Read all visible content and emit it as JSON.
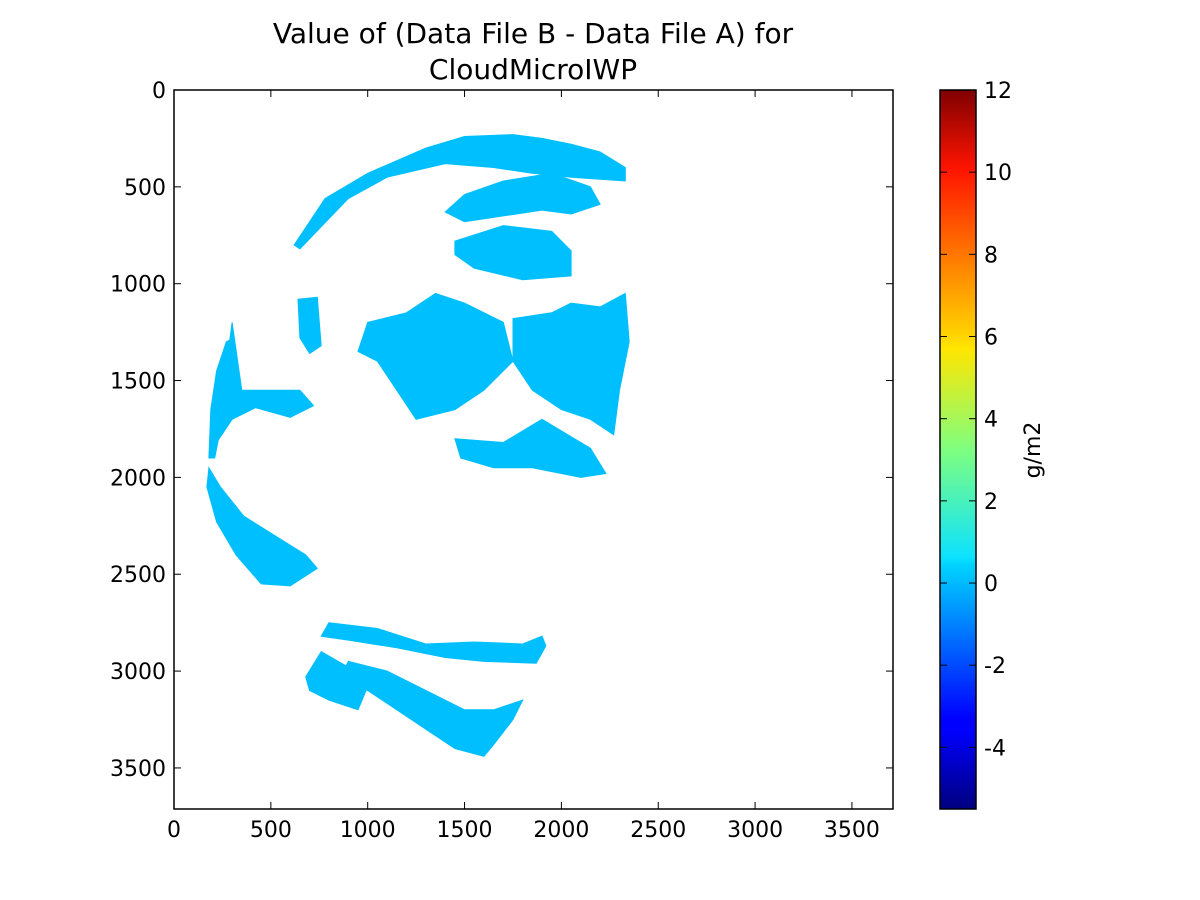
{
  "chart_data": {
    "type": "heatmap",
    "title_lines": [
      "Value of (Data File B - Data File A) for",
      "CloudMicroIWP"
    ],
    "xlabel": "",
    "ylabel": "",
    "xlim": [
      0,
      3712
    ],
    "ylim": [
      3712,
      0
    ],
    "x_ticks": [
      "0",
      "500",
      "1000",
      "1500",
      "2000",
      "2500",
      "3000",
      "3500"
    ],
    "x_tick_values": [
      0,
      500,
      1000,
      1500,
      2000,
      2500,
      3000,
      3500
    ],
    "y_ticks": [
      "0",
      "500",
      "1000",
      "1500",
      "2000",
      "2500",
      "3000",
      "3500"
    ],
    "y_tick_values": [
      0,
      500,
      1000,
      1500,
      2000,
      2500,
      3000,
      3500
    ],
    "fill_value": 0,
    "fill_color": "#00bfff",
    "colorbar": {
      "label": "g/m2",
      "colormap": "jet",
      "vmin": -5.5,
      "vmax": 12,
      "ticks": [
        "-4",
        "-2",
        "0",
        "2",
        "4",
        "6",
        "8",
        "10",
        "12"
      ],
      "tick_values": [
        -4,
        -2,
        0,
        2,
        4,
        6,
        8,
        10,
        12
      ]
    },
    "regions": [
      {
        "name": "north-arc",
        "points": [
          [
            620,
            800
          ],
          [
            780,
            560
          ],
          [
            1000,
            430
          ],
          [
            1300,
            300
          ],
          [
            1500,
            240
          ],
          [
            1750,
            230
          ],
          [
            1900,
            250
          ],
          [
            2050,
            280
          ],
          [
            2200,
            320
          ],
          [
            2330,
            400
          ],
          [
            2330,
            470
          ],
          [
            2050,
            450
          ],
          [
            1850,
            430
          ],
          [
            1650,
            400
          ],
          [
            1400,
            380
          ],
          [
            1100,
            450
          ],
          [
            900,
            560
          ],
          [
            650,
            820
          ]
        ]
      },
      {
        "name": "north-east-band",
        "points": [
          [
            1500,
            540
          ],
          [
            1700,
            470
          ],
          [
            1950,
            430
          ],
          [
            2150,
            500
          ],
          [
            2200,
            590
          ],
          [
            2050,
            640
          ],
          [
            1900,
            620
          ],
          [
            1700,
            650
          ],
          [
            1500,
            680
          ],
          [
            1400,
            630
          ]
        ]
      },
      {
        "name": "north-east-clusters",
        "points": [
          [
            1450,
            780
          ],
          [
            1700,
            700
          ],
          [
            1950,
            730
          ],
          [
            2050,
            830
          ],
          [
            2050,
            960
          ],
          [
            1800,
            980
          ],
          [
            1550,
            920
          ],
          [
            1450,
            850
          ]
        ]
      },
      {
        "name": "left-band-upper",
        "points": [
          [
            300,
            1200
          ],
          [
            350,
            1550
          ],
          [
            650,
            1550
          ],
          [
            720,
            1630
          ],
          [
            600,
            1690
          ],
          [
            420,
            1640
          ],
          [
            300,
            1700
          ],
          [
            200,
            1850
          ],
          [
            250,
            1580
          ]
        ]
      },
      {
        "name": "western-limb",
        "points": [
          [
            270,
            1300
          ],
          [
            310,
            1280
          ],
          [
            320,
            1480
          ],
          [
            250,
            1700
          ],
          [
            210,
            1900
          ],
          [
            180,
            1900
          ],
          [
            190,
            1650
          ],
          [
            220,
            1450
          ]
        ]
      },
      {
        "name": "mid-west-spot",
        "points": [
          [
            640,
            1080
          ],
          [
            740,
            1070
          ],
          [
            760,
            1320
          ],
          [
            700,
            1360
          ],
          [
            650,
            1280
          ]
        ]
      },
      {
        "name": "central-cloud",
        "points": [
          [
            1000,
            1200
          ],
          [
            1200,
            1150
          ],
          [
            1350,
            1050
          ],
          [
            1500,
            1100
          ],
          [
            1700,
            1200
          ],
          [
            1750,
            1400
          ],
          [
            1600,
            1550
          ],
          [
            1450,
            1650
          ],
          [
            1250,
            1700
          ],
          [
            1150,
            1550
          ],
          [
            1050,
            1400
          ],
          [
            950,
            1350
          ]
        ]
      },
      {
        "name": "east-mass",
        "points": [
          [
            1750,
            1180
          ],
          [
            1950,
            1150
          ],
          [
            2050,
            1100
          ],
          [
            2200,
            1120
          ],
          [
            2330,
            1050
          ],
          [
            2350,
            1300
          ],
          [
            2300,
            1550
          ],
          [
            2270,
            1780
          ],
          [
            2150,
            1700
          ],
          [
            2000,
            1650
          ],
          [
            1850,
            1550
          ],
          [
            1750,
            1400
          ]
        ]
      },
      {
        "name": "east-scatter",
        "points": [
          [
            1450,
            1800
          ],
          [
            1700,
            1820
          ],
          [
            1900,
            1700
          ],
          [
            2150,
            1850
          ],
          [
            2230,
            1980
          ],
          [
            2100,
            2000
          ],
          [
            1850,
            1950
          ],
          [
            1650,
            1950
          ],
          [
            1480,
            1900
          ]
        ]
      },
      {
        "name": "southwest-limb",
        "points": [
          [
            180,
            1950
          ],
          [
            240,
            2050
          ],
          [
            360,
            2200
          ],
          [
            520,
            2300
          ],
          [
            680,
            2400
          ],
          [
            740,
            2470
          ],
          [
            600,
            2560
          ],
          [
            450,
            2550
          ],
          [
            320,
            2400
          ],
          [
            220,
            2230
          ],
          [
            170,
            2050
          ]
        ]
      },
      {
        "name": "south-band",
        "points": [
          [
            800,
            2750
          ],
          [
            1050,
            2780
          ],
          [
            1300,
            2860
          ],
          [
            1550,
            2850
          ],
          [
            1800,
            2860
          ],
          [
            1900,
            2820
          ],
          [
            1920,
            2870
          ],
          [
            1870,
            2960
          ],
          [
            1600,
            2950
          ],
          [
            1400,
            2930
          ],
          [
            1150,
            2880
          ],
          [
            900,
            2840
          ],
          [
            760,
            2820
          ]
        ]
      },
      {
        "name": "south-spiral",
        "points": [
          [
            900,
            2950
          ],
          [
            1100,
            3000
          ],
          [
            1300,
            3100
          ],
          [
            1500,
            3200
          ],
          [
            1650,
            3200
          ],
          [
            1800,
            3150
          ],
          [
            1750,
            3250
          ],
          [
            1650,
            3380
          ],
          [
            1600,
            3440
          ],
          [
            1450,
            3400
          ],
          [
            1300,
            3300
          ],
          [
            1150,
            3200
          ],
          [
            1000,
            3100
          ],
          [
            850,
            3050
          ]
        ]
      },
      {
        "name": "south-west-fragments",
        "points": [
          [
            680,
            3030
          ],
          [
            760,
            2900
          ],
          [
            900,
            2980
          ],
          [
            1000,
            3080
          ],
          [
            950,
            3200
          ],
          [
            800,
            3150
          ],
          [
            700,
            3100
          ]
        ]
      }
    ]
  }
}
